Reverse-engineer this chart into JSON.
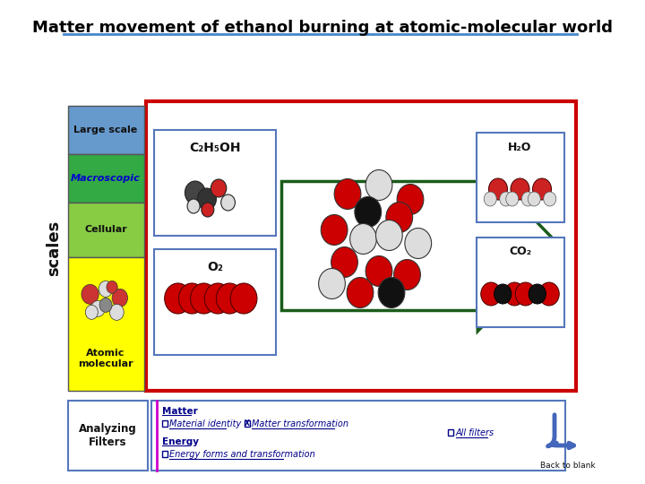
{
  "title": "Matter movement of ethanol burning at atomic-molecular world",
  "title_fontsize": 13,
  "title_color": "#000000",
  "bg_color": "#ffffff",
  "scale_labels": [
    "Large scale",
    "Macroscopic",
    "Cellular",
    "Atomic\nmolecular"
  ],
  "scale_colors": [
    "#6699cc",
    "#33aa44",
    "#88cc44",
    "#ffff00"
  ],
  "scales_text": "scales",
  "main_box_color": "#cc0000",
  "arrow_color": "#1a5c1a",
  "reactant_label1": "C₂H₅OH",
  "reactant_label2": "O₂",
  "product_label1": "H₂O",
  "product_label2": "CO₂",
  "footer_text_matter": "Matter",
  "footer_text_mat_id": "Material identity",
  "footer_text_mat_trans": "Matter transformation",
  "footer_text_energy": "Energy",
  "footer_text_energy_forms": "Energy forms and transformation",
  "footer_text_all_filters": "All filters",
  "analyzing_filters": "Analyzing\nFilters",
  "back_to_blank": "Back to blank"
}
